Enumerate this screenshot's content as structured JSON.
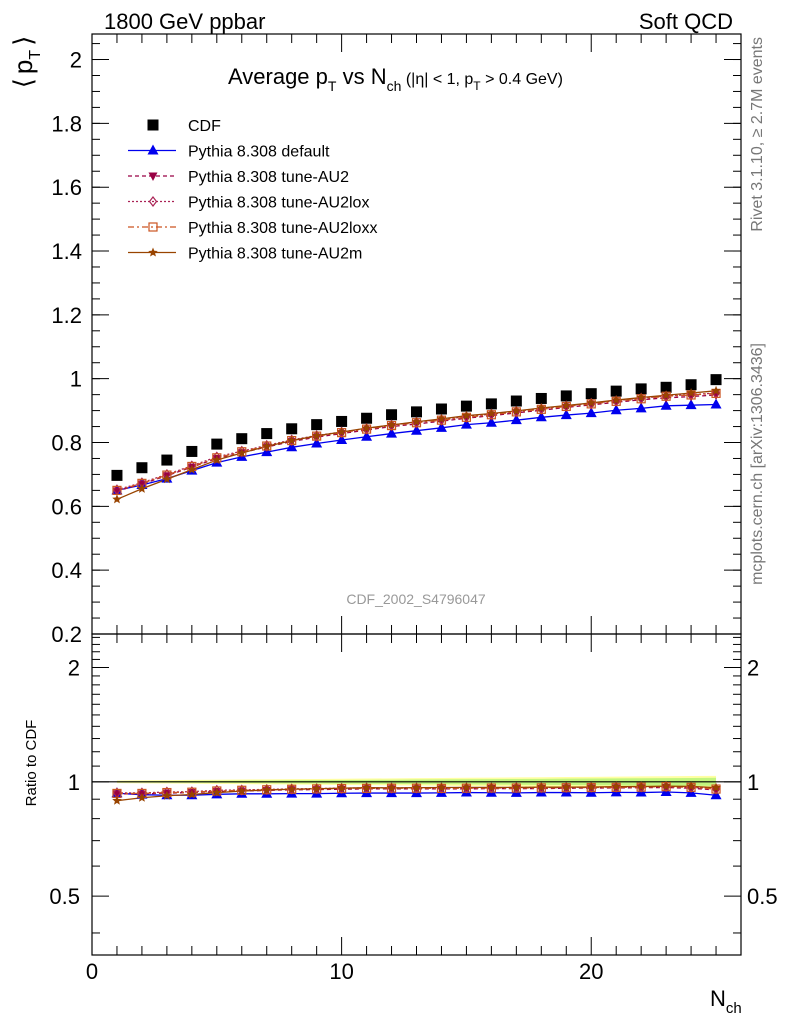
{
  "header": {
    "left": "1800 GeV ppbar",
    "right": "Soft QCD"
  },
  "side_text": {
    "top": "Rivet 3.1.10, ≥ 2.7M events",
    "bottom": "mcplots.cern.ch [arXiv:1306.3436]"
  },
  "chart_data": {
    "type": "scatter",
    "title": "Average p_T vs N_ch (|η| < 1, p_T > 0.4 GeV)",
    "title_parts": {
      "t1": "Average p",
      "t1sub": "T",
      "t2": " vs N",
      "t2sub": "ch",
      "t3": " (|η| < 1, p",
      "t3sub": "T",
      "t4": " > 0.4 GeV)"
    },
    "ylabel": "⟨ p_T ⟩",
    "ylabel_parts": {
      "open": "⟨",
      "main": "p",
      "sub": "T",
      "close": "⟩"
    },
    "xlabel": "N_ch",
    "xlabel_parts": {
      "main": "N",
      "sub": "ch"
    },
    "ratio_ylabel": "Ratio to CDF",
    "watermark": "CDF_2002_S4796047",
    "xlim": [
      0,
      26
    ],
    "ylim": [
      0.2,
      2.08
    ],
    "ratio_ylim": [
      0.35,
      2.45
    ],
    "ratio_log": true,
    "xticks": [
      0,
      10,
      20
    ],
    "xtick_labels": [
      "0",
      "10",
      "20"
    ],
    "yticks": [
      0.2,
      0.4,
      0.6,
      0.8,
      1.0,
      1.2,
      1.4,
      1.6,
      1.8,
      2.0
    ],
    "ytick_labels": [
      "0.2",
      "0.4",
      "0.6",
      "0.8",
      "1",
      "1.2",
      "1.4",
      "1.6",
      "1.8",
      "2"
    ],
    "ratio_yticks": [
      0.5,
      1,
      2
    ],
    "ratio_ytick_labels": [
      "0.5",
      "1",
      "2"
    ],
    "legend_position": "top-left",
    "x": [
      1,
      2,
      3,
      4,
      5,
      6,
      7,
      8,
      9,
      10,
      11,
      12,
      13,
      14,
      15,
      16,
      17,
      18,
      19,
      20,
      21,
      22,
      23,
      24,
      25
    ],
    "series": [
      {
        "name": "CDF",
        "color": "#000000",
        "marker": "square",
        "line": "none",
        "values": [
          0.697,
          0.721,
          0.745,
          0.772,
          0.795,
          0.812,
          0.828,
          0.843,
          0.856,
          0.866,
          0.876,
          0.887,
          0.896,
          0.905,
          0.914,
          0.921,
          0.93,
          0.938,
          0.946,
          0.953,
          0.961,
          0.968,
          0.973,
          0.981,
          0.997
        ],
        "ratio": [
          1,
          1,
          1,
          1,
          1,
          1,
          1,
          1,
          1,
          1,
          1,
          1,
          1,
          1,
          1,
          1,
          1,
          1,
          1,
          1,
          1,
          1,
          1,
          1,
          1
        ]
      },
      {
        "name": "Pythia 8.308 default",
        "color": "#0000ee",
        "marker": "triangle-up",
        "line": "solid",
        "values": [
          0.65,
          0.667,
          0.687,
          0.712,
          0.737,
          0.755,
          0.77,
          0.785,
          0.797,
          0.808,
          0.818,
          0.828,
          0.837,
          0.846,
          0.856,
          0.862,
          0.87,
          0.879,
          0.886,
          0.892,
          0.901,
          0.907,
          0.915,
          0.917,
          0.919
        ],
        "ratio": [
          0.933,
          0.925,
          0.922,
          0.922,
          0.927,
          0.93,
          0.93,
          0.931,
          0.931,
          0.933,
          0.934,
          0.934,
          0.934,
          0.935,
          0.937,
          0.936,
          0.935,
          0.937,
          0.937,
          0.936,
          0.938,
          0.937,
          0.94,
          0.935,
          0.922
        ]
      },
      {
        "name": "Pythia 8.308 tune-AU2",
        "color": "#990044",
        "marker": "triangle-down",
        "line": "dashed",
        "values": [
          0.648,
          0.67,
          0.696,
          0.723,
          0.75,
          0.768,
          0.786,
          0.803,
          0.817,
          0.828,
          0.839,
          0.85,
          0.858,
          0.867,
          0.876,
          0.884,
          0.893,
          0.901,
          0.91,
          0.918,
          0.926,
          0.934,
          0.94,
          0.944,
          0.949
        ],
        "ratio": [
          0.93,
          0.929,
          0.934,
          0.937,
          0.943,
          0.946,
          0.949,
          0.953,
          0.954,
          0.956,
          0.958,
          0.958,
          0.958,
          0.958,
          0.958,
          0.96,
          0.96,
          0.96,
          0.962,
          0.963,
          0.964,
          0.965,
          0.966,
          0.962,
          0.952
        ]
      },
      {
        "name": "Pythia 8.308 tune-AU2lox",
        "color": "#aa2255",
        "marker": "diamond-open",
        "line": "dotted",
        "values": [
          0.652,
          0.674,
          0.7,
          0.727,
          0.755,
          0.773,
          0.791,
          0.808,
          0.822,
          0.833,
          0.844,
          0.855,
          0.864,
          0.872,
          0.881,
          0.889,
          0.898,
          0.906,
          0.915,
          0.923,
          0.931,
          0.939,
          0.946,
          0.95,
          0.955
        ],
        "ratio": [
          0.935,
          0.935,
          0.94,
          0.942,
          0.95,
          0.952,
          0.955,
          0.958,
          0.96,
          0.962,
          0.964,
          0.964,
          0.964,
          0.964,
          0.964,
          0.965,
          0.966,
          0.966,
          0.967,
          0.968,
          0.969,
          0.97,
          0.972,
          0.968,
          0.958
        ]
      },
      {
        "name": "Pythia 8.308 tune-AU2loxx",
        "color": "#cc5522",
        "marker": "square-open",
        "line": "dashdot",
        "values": [
          0.65,
          0.672,
          0.698,
          0.725,
          0.752,
          0.771,
          0.789,
          0.806,
          0.82,
          0.831,
          0.842,
          0.853,
          0.862,
          0.87,
          0.879,
          0.887,
          0.896,
          0.904,
          0.913,
          0.921,
          0.929,
          0.937,
          0.945,
          0.949,
          0.954
        ],
        "ratio": [
          0.932,
          0.932,
          0.937,
          0.939,
          0.946,
          0.95,
          0.953,
          0.956,
          0.958,
          0.96,
          0.961,
          0.962,
          0.962,
          0.961,
          0.962,
          0.963,
          0.963,
          0.964,
          0.965,
          0.966,
          0.967,
          0.968,
          0.971,
          0.967,
          0.957
        ]
      },
      {
        "name": "Pythia 8.308 tune-AU2m",
        "color": "#994400",
        "marker": "star",
        "line": "solid",
        "values": [
          0.622,
          0.655,
          0.685,
          0.715,
          0.745,
          0.767,
          0.788,
          0.806,
          0.821,
          0.833,
          0.845,
          0.855,
          0.865,
          0.874,
          0.884,
          0.891,
          0.899,
          0.908,
          0.916,
          0.924,
          0.933,
          0.941,
          0.948,
          0.955,
          0.962
        ],
        "ratio": [
          0.892,
          0.908,
          0.919,
          0.926,
          0.937,
          0.945,
          0.952,
          0.956,
          0.959,
          0.962,
          0.965,
          0.964,
          0.965,
          0.966,
          0.967,
          0.967,
          0.967,
          0.968,
          0.968,
          0.969,
          0.971,
          0.972,
          0.974,
          0.973,
          0.965
        ]
      }
    ]
  }
}
